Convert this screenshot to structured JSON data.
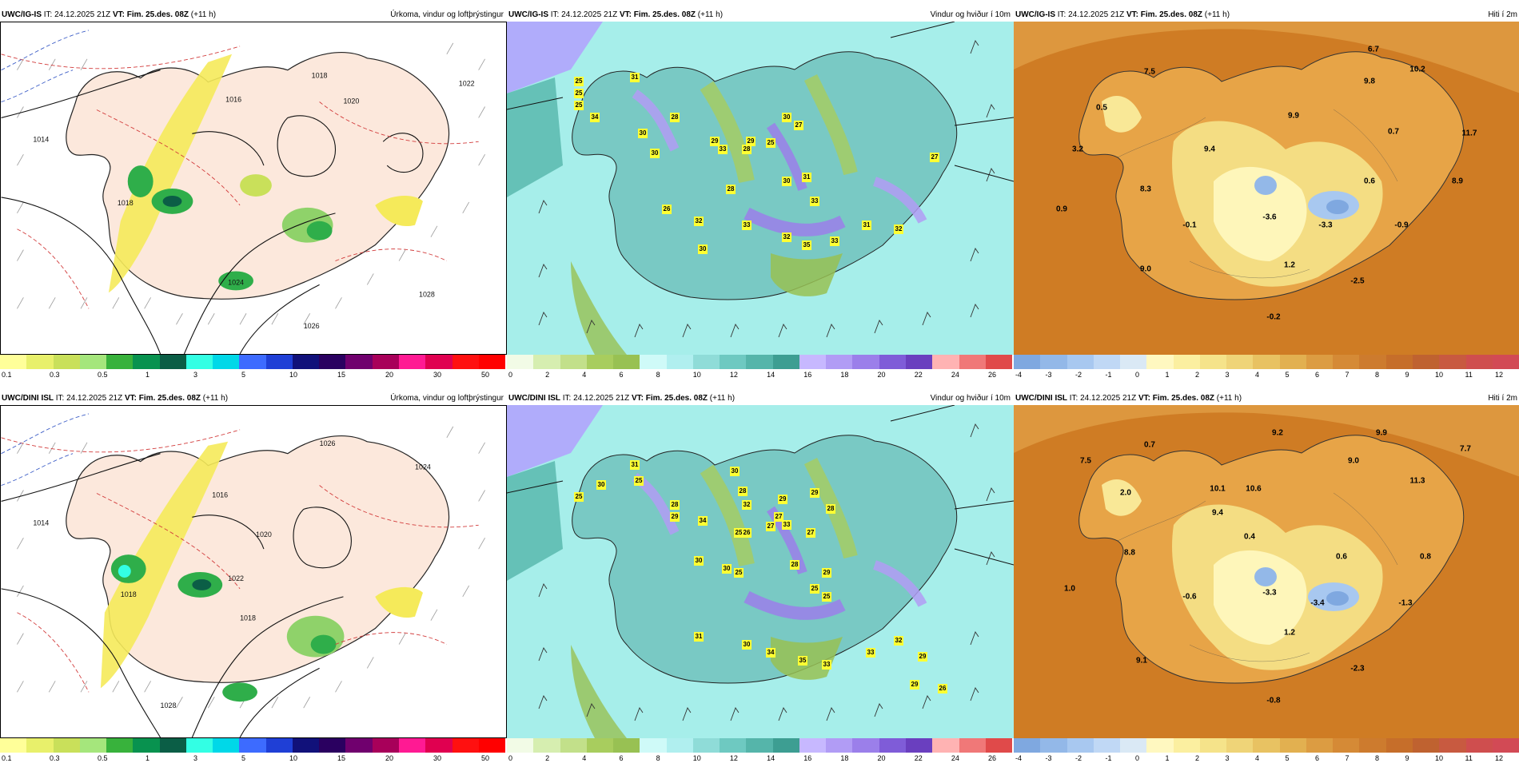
{
  "colors": {
    "island_precip": "#fce8dc",
    "ocean_precip": "#ffffff",
    "ocean_wind": "#a6eeea",
    "island_wind": "#79c9c4",
    "ocean_temp": "#cf7c24",
    "island_temp": "#e7a447",
    "isobar": "#111111",
    "dashed_red": "#d23b3b",
    "dashed_blue": "#3d5ec7"
  },
  "rows": [
    {
      "model": "UWC/IG-IS",
      "panels": {
        "precip": {
          "model": "UWC/IG-IS",
          "it": "IT: 24.12.2025 21Z",
          "vt_label": "VT:",
          "vt": "Fim. 25.des. 08Z",
          "offset": "(+11 h)",
          "right_title": "Úrkoma, vindur og loftþrýstingur",
          "labels": [
            "1016",
            "1018",
            "1020",
            "1022",
            "1024",
            "1026",
            "1028",
            "1014",
            "1018"
          ]
        },
        "wind": {
          "model": "UWC/IG-IS",
          "it": "IT: 24.12.2025 21Z",
          "vt_label": "VT:",
          "vt": "Fim. 25.des. 08Z",
          "offset": "(+11 h)",
          "right_title": "Vindur og hviður í 10m",
          "gusts": [
            "31",
            "25",
            "34",
            "28",
            "30",
            "25",
            "30",
            "29",
            "33",
            "29",
            "28",
            "25",
            "27",
            "30",
            "31",
            "30",
            "28",
            "26",
            "32",
            "33",
            "33",
            "27",
            "30",
            "32",
            "35",
            "33",
            "31",
            "32",
            "25"
          ]
        },
        "temp": {
          "model": "UWC/IG-IS",
          "it": "IT: 24.12.2025 21Z",
          "vt_label": "VT:",
          "vt": "Fim. 25.des. 08Z",
          "offset": "(+11 h)",
          "right_title": "Hiti í 2m",
          "values": [
            "6.7",
            "7.5",
            "10.2",
            "9.8",
            "0.5",
            "9.9",
            "0.7",
            "11.7",
            "3.2",
            "9.4",
            "0.6",
            "8.9",
            "8.3",
            "0.9",
            "-0.1",
            "-3.6",
            "-3.3",
            "-0.9",
            "1.2",
            "9.0",
            "-2.5",
            "-0.2"
          ]
        }
      }
    },
    {
      "model": "UWC/DINI ISL",
      "panels": {
        "precip": {
          "model": "UWC/DINI ISL",
          "it": "IT: 24.12.2025 21Z",
          "vt_label": "VT:",
          "vt": "Fim. 25.des. 08Z",
          "offset": "(+11 h)",
          "right_title": "Úrkoma, vindur og loftþrýstingur",
          "labels": [
            "1016",
            "1018",
            "1020",
            "1022",
            "1024",
            "1026",
            "1028",
            "1014",
            "1018"
          ]
        },
        "wind": {
          "model": "UWC/DINI ISL",
          "it": "IT: 24.12.2025 21Z",
          "vt_label": "VT:",
          "vt": "Fim. 25.des. 08Z",
          "offset": "(+11 h)",
          "right_title": "Vindur og hviður í 10m",
          "gusts": [
            "31",
            "25",
            "30",
            "25",
            "28",
            "29",
            "30",
            "28",
            "29",
            "32",
            "25",
            "27",
            "34",
            "33",
            "29",
            "28",
            "26",
            "30",
            "30",
            "25",
            "28",
            "29",
            "25",
            "25",
            "27",
            "27",
            "31",
            "30",
            "34",
            "35",
            "33",
            "33",
            "32",
            "29",
            "29",
            "26"
          ]
        },
        "temp": {
          "model": "UWC/DINI ISL",
          "it": "IT: 24.12.2025 21Z",
          "vt_label": "VT:",
          "vt": "Fim. 25.des. 08Z",
          "offset": "(+11 h)",
          "right_title": "Hiti í 2m",
          "values": [
            "9.2",
            "9.9",
            "7.5",
            "0.7",
            "7.7",
            "9.0",
            "11.3",
            "2.0",
            "10.1",
            "10.6",
            "9.4",
            "0.4",
            "8.8",
            "0.6",
            "0.8",
            "1.0",
            "-0.6",
            "-3.3",
            "-3.4",
            "-1.3",
            "1.2",
            "9.1",
            "-2.3",
            "-0.8"
          ]
        }
      }
    }
  ],
  "colorbars": {
    "precip": {
      "colors": [
        "#ffff99",
        "#e8f06b",
        "#c9e05a",
        "#a5e67c",
        "#38b23c",
        "#08924f",
        "#0b5e46",
        "#33ffe4",
        "#00d8e8",
        "#3d6bff",
        "#1f3fd6",
        "#11117a",
        "#2a0060",
        "#70006e",
        "#a8005a",
        "#ff1a93",
        "#e00050",
        "#ff1010",
        "#ff0000"
      ],
      "labels": [
        "0.1",
        "0.3",
        "0.5",
        "1",
        "3",
        "5",
        "10",
        "15",
        "20",
        "30",
        "50"
      ]
    },
    "wind": {
      "colors": [
        "#f2fbe6",
        "#d6eeb0",
        "#c2e08a",
        "#a8cd5e",
        "#98c153",
        "#cffaf8",
        "#b0efef",
        "#8fdcd8",
        "#6ec9c1",
        "#55b5aa",
        "#3d9e92",
        "#c7b8ff",
        "#b19cf5",
        "#9b7fea",
        "#7f5cd8",
        "#6a3fbf",
        "#ffb3b3",
        "#f07878",
        "#e04a4a"
      ],
      "labels": [
        "0",
        "2",
        "4",
        "6",
        "8",
        "10",
        "12",
        "14",
        "16",
        "18",
        "20",
        "22",
        "24",
        "26"
      ]
    },
    "temp": {
      "colors": [
        "#7fa8e0",
        "#93b8e8",
        "#a8c8f0",
        "#c0d8f5",
        "#dae9f5",
        "#fff8c0",
        "#fbefa0",
        "#f5e38a",
        "#efd478",
        "#e8c262",
        "#e2b050",
        "#dc9c42",
        "#d58a36",
        "#cd7b2e",
        "#c66e2a",
        "#bf6230",
        "#c85a40",
        "#cf4e4e",
        "#d24a55"
      ],
      "labels": [
        "-4",
        "-3",
        "-2",
        "-1",
        "0",
        "1",
        "2",
        "3",
        "4",
        "5",
        "6",
        "7",
        "8",
        "9",
        "10",
        "11",
        "12"
      ]
    }
  }
}
